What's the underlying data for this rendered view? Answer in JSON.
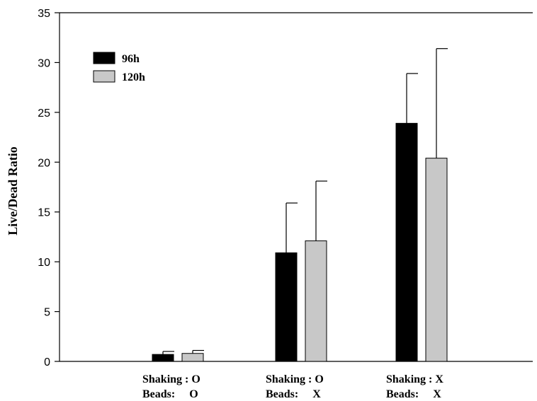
{
  "chart_data": {
    "type": "bar",
    "title": "",
    "xlabel": "",
    "ylabel": "Live/Dead Ratio",
    "ylim": [
      0,
      35
    ],
    "yticks": [
      0,
      5,
      10,
      15,
      20,
      25,
      30,
      35
    ],
    "grid": false,
    "legend_position": "top-left",
    "categories": [
      {
        "line1": "Shaking : O",
        "line2": "Beads:     O"
      },
      {
        "line1": "Shaking : O",
        "line2": "Beads:     X"
      },
      {
        "line1": "Shaking : X",
        "line2": "Beads:     X"
      }
    ],
    "series": [
      {
        "name": "96h",
        "color": "#000000",
        "values": [
          0.7,
          10.9,
          23.9
        ],
        "errors": [
          0.3,
          5.0,
          5.0
        ]
      },
      {
        "name": "120h",
        "color": "#c8c8c8",
        "values": [
          0.8,
          12.1,
          20.4
        ],
        "errors": [
          0.3,
          6.0,
          11.0
        ]
      }
    ]
  }
}
